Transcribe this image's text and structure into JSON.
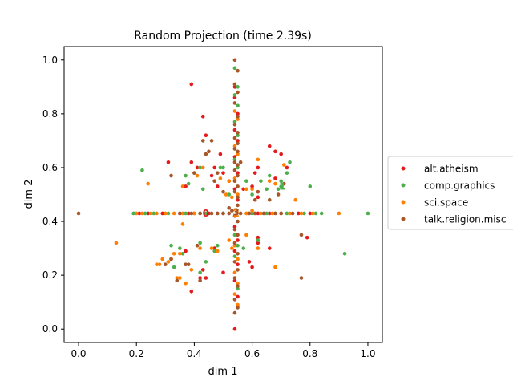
{
  "chart_data": {
    "type": "scatter",
    "title": "Random Projection (time 2.39s)",
    "xlabel": "dim 1",
    "ylabel": "dim 2",
    "xlim": [
      -0.05,
      1.05
    ],
    "ylim": [
      -0.05,
      1.05
    ],
    "xticks": [
      0.0,
      0.2,
      0.4,
      0.6,
      0.8,
      1.0
    ],
    "yticks": [
      0.0,
      0.2,
      0.4,
      0.6,
      0.8,
      1.0
    ],
    "xtick_labels": [
      "0.0",
      "0.2",
      "0.4",
      "0.6",
      "0.8",
      "1.0"
    ],
    "ytick_labels": [
      "0.0",
      "0.2",
      "0.4",
      "0.6",
      "0.8",
      "1.0"
    ],
    "grid": false,
    "legend_position": "center-right outside",
    "series": [
      {
        "name": "alt.atheism",
        "color": "#e41a1c",
        "points": [
          [
            0.39,
            0.91
          ],
          [
            0.43,
            0.79
          ],
          [
            0.44,
            0.72
          ],
          [
            0.31,
            0.62
          ],
          [
            0.39,
            0.62
          ],
          [
            0.41,
            0.6
          ],
          [
            0.37,
            0.53
          ],
          [
            0.46,
            0.57
          ],
          [
            0.48,
            0.53
          ],
          [
            0.47,
            0.6
          ],
          [
            0.49,
            0.65
          ],
          [
            0.5,
            0.58
          ],
          [
            0.52,
            0.55
          ],
          [
            0.57,
            0.52
          ],
          [
            0.6,
            0.53
          ],
          [
            0.61,
            0.58
          ],
          [
            0.62,
            0.6
          ],
          [
            0.62,
            0.49
          ],
          [
            0.66,
            0.68
          ],
          [
            0.68,
            0.66
          ],
          [
            0.7,
            0.65
          ],
          [
            0.72,
            0.6
          ],
          [
            0.68,
            0.56
          ],
          [
            0.54,
            0.9
          ],
          [
            0.54,
            0.86
          ],
          [
            0.55,
            0.8
          ],
          [
            0.54,
            0.74
          ],
          [
            0.55,
            0.7
          ],
          [
            0.54,
            0.64
          ],
          [
            0.55,
            0.58
          ],
          [
            0.54,
            0.52
          ],
          [
            0.55,
            0.48
          ],
          [
            0.54,
            0.38
          ],
          [
            0.55,
            0.33
          ],
          [
            0.54,
            0.29
          ],
          [
            0.55,
            0.24
          ],
          [
            0.54,
            0.18
          ],
          [
            0.55,
            0.12
          ],
          [
            0.54,
            0.0
          ],
          [
            0.21,
            0.43
          ],
          [
            0.24,
            0.43
          ],
          [
            0.29,
            0.43
          ],
          [
            0.35,
            0.43
          ],
          [
            0.38,
            0.43
          ],
          [
            0.45,
            0.43
          ],
          [
            0.62,
            0.43
          ],
          [
            0.66,
            0.43
          ],
          [
            0.7,
            0.43
          ],
          [
            0.76,
            0.43
          ],
          [
            0.8,
            0.43
          ],
          [
            0.39,
            0.14
          ],
          [
            0.42,
            0.19
          ],
          [
            0.44,
            0.19
          ],
          [
            0.37,
            0.29
          ],
          [
            0.47,
            0.3
          ],
          [
            0.59,
            0.25
          ],
          [
            0.6,
            0.23
          ],
          [
            0.62,
            0.32
          ],
          [
            0.62,
            0.34
          ],
          [
            0.66,
            0.3
          ],
          [
            0.79,
            0.34
          ],
          [
            0.5,
            0.21
          ],
          [
            0.43,
            0.22
          ]
        ]
      },
      {
        "name": "comp.graphics",
        "color": "#4daf4a",
        "points": [
          [
            0.22,
            0.59
          ],
          [
            0.37,
            0.57
          ],
          [
            0.4,
            0.58
          ],
          [
            0.42,
            0.6
          ],
          [
            0.38,
            0.54
          ],
          [
            0.43,
            0.52
          ],
          [
            0.49,
            0.6
          ],
          [
            0.5,
            0.6
          ],
          [
            0.52,
            0.5
          ],
          [
            0.55,
            0.49
          ],
          [
            0.58,
            0.55
          ],
          [
            0.6,
            0.5
          ],
          [
            0.63,
            0.55
          ],
          [
            0.66,
            0.57
          ],
          [
            0.7,
            0.55
          ],
          [
            0.72,
            0.58
          ],
          [
            0.73,
            0.62
          ],
          [
            0.8,
            0.53
          ],
          [
            0.69,
            0.52
          ],
          [
            0.7,
            0.53
          ],
          [
            0.54,
            0.97
          ],
          [
            0.55,
            0.9
          ],
          [
            0.54,
            0.87
          ],
          [
            0.55,
            0.83
          ],
          [
            0.54,
            0.77
          ],
          [
            0.55,
            0.72
          ],
          [
            0.54,
            0.63
          ],
          [
            0.55,
            0.6
          ],
          [
            0.54,
            0.35
          ],
          [
            0.55,
            0.31
          ],
          [
            0.54,
            0.27
          ],
          [
            0.55,
            0.15
          ],
          [
            0.19,
            0.43
          ],
          [
            0.23,
            0.43
          ],
          [
            0.26,
            0.43
          ],
          [
            0.31,
            0.43
          ],
          [
            0.37,
            0.43
          ],
          [
            0.42,
            0.43
          ],
          [
            0.5,
            0.43
          ],
          [
            0.6,
            0.43
          ],
          [
            0.65,
            0.43
          ],
          [
            0.72,
            0.43
          ],
          [
            0.78,
            0.43
          ],
          [
            0.82,
            0.43
          ],
          [
            0.84,
            0.43
          ],
          [
            1.0,
            0.43
          ],
          [
            0.32,
            0.31
          ],
          [
            0.33,
            0.23
          ],
          [
            0.35,
            0.3
          ],
          [
            0.36,
            0.28
          ],
          [
            0.42,
            0.32
          ],
          [
            0.44,
            0.25
          ],
          [
            0.47,
            0.29
          ],
          [
            0.48,
            0.31
          ],
          [
            0.42,
            0.21
          ],
          [
            0.57,
            0.3
          ],
          [
            0.62,
            0.33
          ],
          [
            0.92,
            0.28
          ],
          [
            0.44,
            0.43
          ],
          [
            0.65,
            0.52
          ]
        ]
      },
      {
        "name": "sci.space",
        "color": "#ff7f00",
        "points": [
          [
            0.24,
            0.54
          ],
          [
            0.36,
            0.53
          ],
          [
            0.41,
            0.57
          ],
          [
            0.43,
            0.6
          ],
          [
            0.49,
            0.56
          ],
          [
            0.51,
            0.5
          ],
          [
            0.52,
            0.55
          ],
          [
            0.58,
            0.52
          ],
          [
            0.6,
            0.52
          ],
          [
            0.62,
            0.63
          ],
          [
            0.66,
            0.55
          ],
          [
            0.68,
            0.54
          ],
          [
            0.71,
            0.61
          ],
          [
            0.75,
            0.48
          ],
          [
            0.53,
            0.49
          ],
          [
            0.54,
            0.81
          ],
          [
            0.55,
            0.78
          ],
          [
            0.54,
            0.68
          ],
          [
            0.55,
            0.65
          ],
          [
            0.54,
            0.56
          ],
          [
            0.55,
            0.5
          ],
          [
            0.54,
            0.31
          ],
          [
            0.55,
            0.26
          ],
          [
            0.54,
            0.21
          ],
          [
            0.55,
            0.17
          ],
          [
            0.54,
            0.13
          ],
          [
            0.55,
            0.09
          ],
          [
            0.13,
            0.32
          ],
          [
            0.2,
            0.43
          ],
          [
            0.22,
            0.43
          ],
          [
            0.25,
            0.43
          ],
          [
            0.27,
            0.43
          ],
          [
            0.3,
            0.43
          ],
          [
            0.33,
            0.43
          ],
          [
            0.36,
            0.43
          ],
          [
            0.4,
            0.43
          ],
          [
            0.58,
            0.43
          ],
          [
            0.63,
            0.43
          ],
          [
            0.67,
            0.43
          ],
          [
            0.73,
            0.43
          ],
          [
            0.77,
            0.43
          ],
          [
            0.81,
            0.43
          ],
          [
            0.9,
            0.43
          ],
          [
            0.36,
            0.39
          ],
          [
            0.27,
            0.24
          ],
          [
            0.28,
            0.24
          ],
          [
            0.29,
            0.26
          ],
          [
            0.31,
            0.25
          ],
          [
            0.32,
            0.26
          ],
          [
            0.33,
            0.28
          ],
          [
            0.35,
            0.28
          ],
          [
            0.35,
            0.19
          ],
          [
            0.34,
            0.19
          ],
          [
            0.37,
            0.17
          ],
          [
            0.39,
            0.22
          ],
          [
            0.42,
            0.3
          ],
          [
            0.46,
            0.3
          ],
          [
            0.48,
            0.29
          ],
          [
            0.52,
            0.33
          ],
          [
            0.53,
            0.3
          ],
          [
            0.58,
            0.35
          ],
          [
            0.6,
            0.44
          ],
          [
            0.62,
            0.3
          ],
          [
            0.68,
            0.23
          ],
          [
            0.4,
            0.43
          ]
        ]
      },
      {
        "name": "talk.religion.misc",
        "color": "#a65628",
        "points": [
          [
            0.0,
            0.43
          ],
          [
            0.32,
            0.57
          ],
          [
            0.38,
            0.24
          ],
          [
            0.4,
            0.58
          ],
          [
            0.41,
            0.31
          ],
          [
            0.43,
            0.7
          ],
          [
            0.44,
            0.65
          ],
          [
            0.45,
            0.66
          ],
          [
            0.46,
            0.7
          ],
          [
            0.48,
            0.58
          ],
          [
            0.47,
            0.55
          ],
          [
            0.5,
            0.51
          ],
          [
            0.52,
            0.45
          ],
          [
            0.55,
            0.49
          ],
          [
            0.56,
            0.62
          ],
          [
            0.61,
            0.48
          ],
          [
            0.62,
            0.51
          ],
          [
            0.66,
            0.48
          ],
          [
            0.69,
            0.5
          ],
          [
            0.71,
            0.54
          ],
          [
            0.54,
            1.0
          ],
          [
            0.55,
            0.96
          ],
          [
            0.54,
            0.91
          ],
          [
            0.55,
            0.88
          ],
          [
            0.54,
            0.84
          ],
          [
            0.55,
            0.79
          ],
          [
            0.54,
            0.76
          ],
          [
            0.55,
            0.73
          ],
          [
            0.54,
            0.71
          ],
          [
            0.55,
            0.69
          ],
          [
            0.54,
            0.67
          ],
          [
            0.55,
            0.66
          ],
          [
            0.54,
            0.62
          ],
          [
            0.55,
            0.61
          ],
          [
            0.54,
            0.59
          ],
          [
            0.55,
            0.57
          ],
          [
            0.54,
            0.55
          ],
          [
            0.55,
            0.53
          ],
          [
            0.54,
            0.51
          ],
          [
            0.55,
            0.46
          ],
          [
            0.54,
            0.42
          ],
          [
            0.55,
            0.4
          ],
          [
            0.54,
            0.37
          ],
          [
            0.55,
            0.35
          ],
          [
            0.54,
            0.32
          ],
          [
            0.55,
            0.28
          ],
          [
            0.54,
            0.25
          ],
          [
            0.55,
            0.22
          ],
          [
            0.54,
            0.19
          ],
          [
            0.55,
            0.16
          ],
          [
            0.54,
            0.11
          ],
          [
            0.55,
            0.08
          ],
          [
            0.54,
            0.06
          ],
          [
            0.3,
            0.24
          ],
          [
            0.32,
            0.26
          ],
          [
            0.34,
            0.18
          ],
          [
            0.37,
            0.24
          ],
          [
            0.42,
            0.18
          ],
          [
            0.77,
            0.35
          ],
          [
            0.77,
            0.19
          ],
          [
            0.35,
            0.43
          ],
          [
            0.39,
            0.43
          ],
          [
            0.42,
            0.43
          ],
          [
            0.46,
            0.43
          ],
          [
            0.48,
            0.43
          ],
          [
            0.5,
            0.43
          ],
          [
            0.52,
            0.43
          ],
          [
            0.56,
            0.43
          ],
          [
            0.59,
            0.43
          ],
          [
            0.61,
            0.43
          ],
          [
            0.64,
            0.43
          ],
          [
            0.68,
            0.43
          ],
          [
            0.7,
            0.43
          ],
          [
            0.74,
            0.43
          ],
          [
            0.53,
            0.44
          ]
        ]
      }
    ],
    "annotations": [
      {
        "text": "0",
        "x": 0.44,
        "y": 0.43,
        "color": "#e41a1c"
      },
      {
        "text": "1",
        "x": 0.705,
        "y": 0.53,
        "color": "#4daf4a"
      },
      {
        "text": "2",
        "x": 0.545,
        "y": 0.43,
        "color": "#ff7f00"
      },
      {
        "text": "3",
        "x": 0.545,
        "y": 0.435,
        "color": "#a65628"
      }
    ]
  }
}
